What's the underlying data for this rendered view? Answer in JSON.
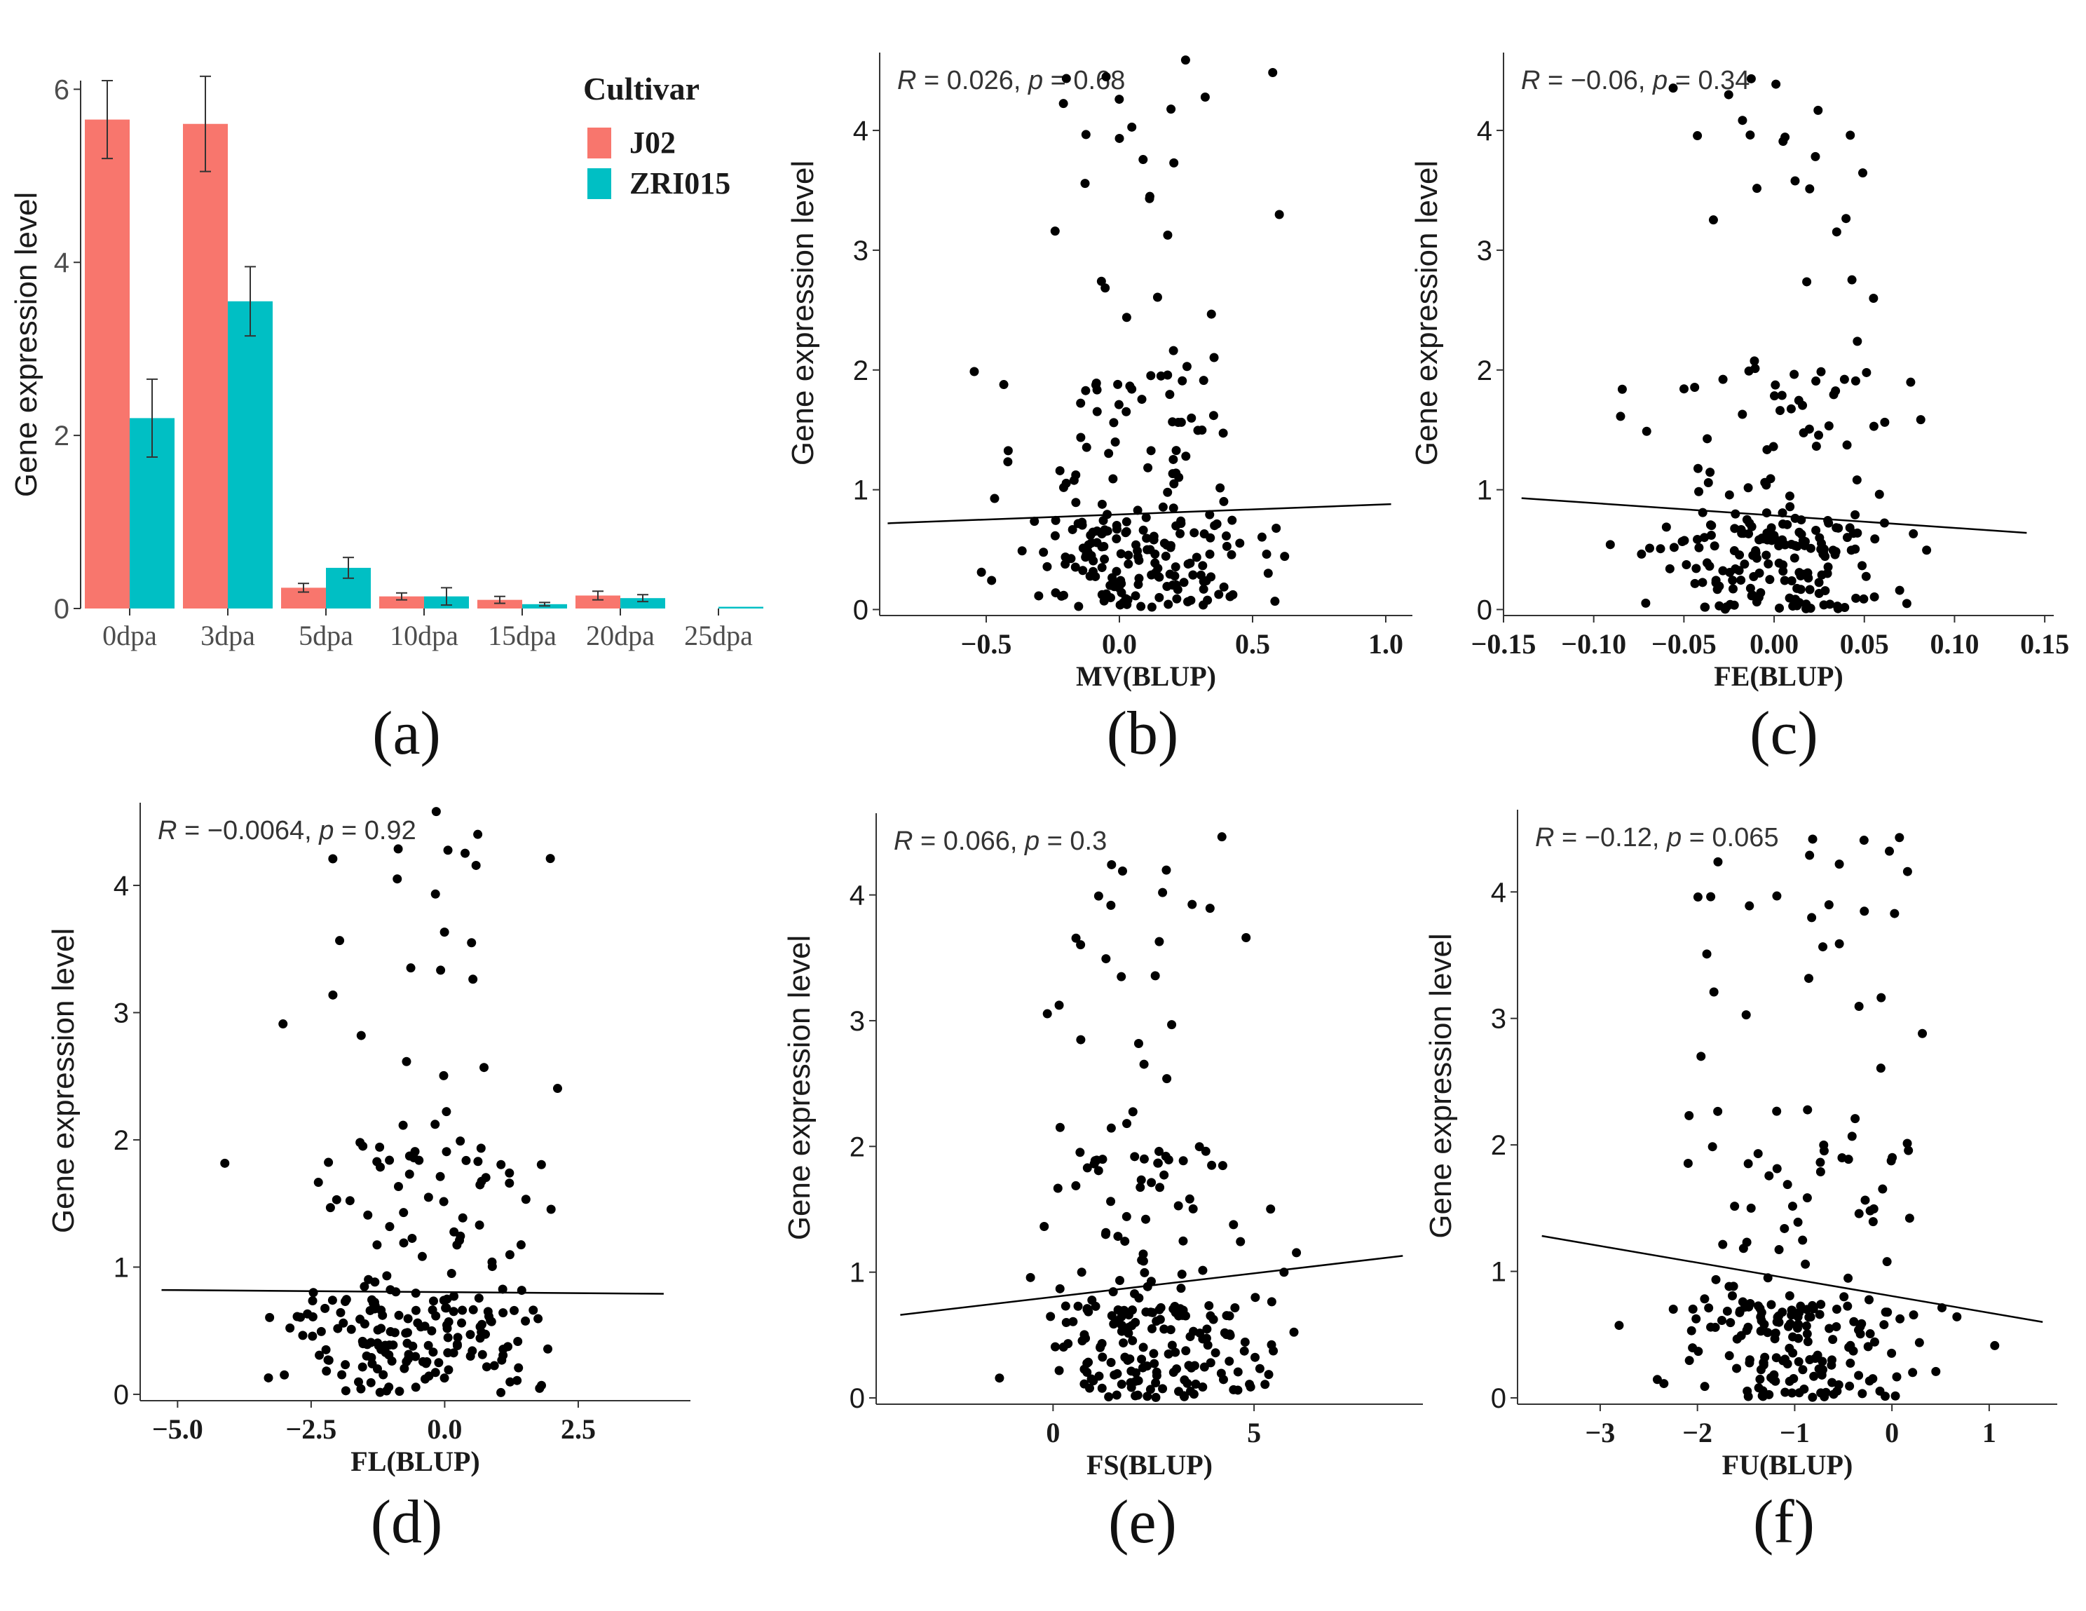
{
  "chart_data": [
    {
      "panel": "(a)",
      "type": "bar",
      "xlabel": "",
      "ylabel": "Gene expression level",
      "ylim": [
        0,
        6.1
      ],
      "y_ticks": [
        0,
        2,
        4,
        6
      ],
      "categories": [
        "0dpa",
        "3dpa",
        "5dpa",
        "10dpa",
        "15dpa",
        "20dpa",
        "25dpa"
      ],
      "legend": {
        "title": "Cultivar",
        "position": "top-right"
      },
      "series": [
        {
          "name": "J02",
          "color": "#F8766D",
          "values": [
            5.65,
            5.6,
            0.24,
            0.14,
            0.1,
            0.15,
            0.0
          ],
          "errors": [
            0.45,
            0.55,
            0.05,
            0.04,
            0.04,
            0.05,
            0.0
          ]
        },
        {
          "name": "ZRI015",
          "color": "#00BFC4",
          "values": [
            2.2,
            3.55,
            0.47,
            0.14,
            0.05,
            0.12,
            0.02
          ],
          "errors": [
            0.45,
            0.4,
            0.12,
            0.1,
            0.02,
            0.04,
            0.0
          ]
        }
      ]
    },
    {
      "panel": "(b)",
      "type": "scatter",
      "xlabel": "MV(BLUP)",
      "ylabel": "Gene expression level",
      "annotation": {
        "R": "0.026",
        "p": "0.68"
      },
      "xlim": [
        -0.9,
        1.1
      ],
      "ylim": [
        -0.05,
        4.65
      ],
      "x_ticks": [
        "-0.5",
        "0.0",
        "0.5",
        "1.0"
      ],
      "y_ticks": [
        0,
        1,
        2,
        3,
        4
      ],
      "fit": {
        "x": [
          -0.87,
          1.02
        ],
        "y": [
          0.72,
          0.88
        ]
      }
    },
    {
      "panel": "(c)",
      "type": "scatter",
      "xlabel": "FE(BLUP)",
      "ylabel": "Gene expression level",
      "annotation": {
        "R": "-0.06",
        "p": "0.34"
      },
      "xlim": [
        -0.15,
        0.155
      ],
      "ylim": [
        -0.05,
        4.65
      ],
      "x_ticks": [
        "-0.15",
        "-0.10",
        "-0.05",
        "0.00",
        "0.05",
        "0.10",
        "0.15"
      ],
      "y_ticks": [
        0,
        1,
        2,
        3,
        4
      ],
      "fit": {
        "x": [
          -0.14,
          0.14
        ],
        "y": [
          0.93,
          0.64
        ]
      }
    },
    {
      "panel": "(d)",
      "type": "scatter",
      "xlabel": "FL(BLUP)",
      "ylabel": "Gene expression level",
      "annotation": {
        "R": "-0.0064",
        "p": "0.92"
      },
      "xlim": [
        -5.7,
        4.6
      ],
      "ylim": [
        -0.05,
        4.65
      ],
      "x_ticks": [
        "-5.0",
        "-2.5",
        "0.0",
        "2.5"
      ],
      "y_ticks": [
        0,
        1,
        2,
        3,
        4
      ],
      "fit": {
        "x": [
          -5.3,
          4.1
        ],
        "y": [
          0.82,
          0.79
        ]
      }
    },
    {
      "panel": "(e)",
      "type": "scatter",
      "xlabel": "FS(BLUP)",
      "ylabel": "Gene expression level",
      "annotation": {
        "R": "0.066",
        "p": "0.3"
      },
      "xlim": [
        -4.4,
        9.2
      ],
      "ylim": [
        -0.05,
        4.65
      ],
      "x_ticks": [
        "0",
        "5"
      ],
      "y_ticks": [
        0,
        1,
        2,
        3,
        4
      ],
      "fit": {
        "x": [
          -3.8,
          8.7
        ],
        "y": [
          0.66,
          1.13
        ]
      }
    },
    {
      "panel": "(f)",
      "type": "scatter",
      "xlabel": "FU(BLUP)",
      "ylabel": "Gene expression level",
      "annotation": {
        "R": "-0.12",
        "p": "0.065"
      },
      "xlim": [
        -3.85,
        1.7
      ],
      "ylim": [
        -0.05,
        4.65
      ],
      "x_ticks": [
        "-3",
        "-2",
        "-1",
        "0",
        "1"
      ],
      "y_ticks": [
        0,
        1,
        2,
        3,
        4
      ],
      "fit": {
        "x": [
          -3.6,
          1.55
        ],
        "y": [
          1.28,
          0.6
        ]
      }
    }
  ]
}
